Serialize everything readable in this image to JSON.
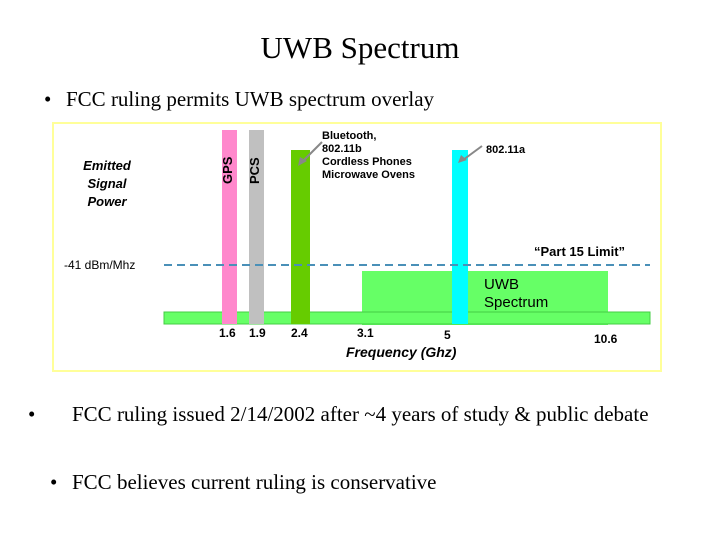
{
  "slide": {
    "title": "UWB Spectrum",
    "bullets": [
      "FCC ruling permits UWB spectrum overlay",
      "FCC ruling issued 2/14/2002 after  ~4 years of study & public debate",
      "FCC believes current ruling is conservative"
    ],
    "bullet_glyph": "•"
  },
  "diagram": {
    "y_label_line1": "Emitted",
    "y_label_line2": "Signal",
    "y_label_line3": "Power",
    "limit_value": "-41 dBm/Mhz",
    "limit_name": "“Part 15 Limit”",
    "bands": {
      "gps": "GPS",
      "pcs": "PCS",
      "ism_line1": "Bluetooth,",
      "ism_line2": "802.11b",
      "ism_line3": "Cordless Phones",
      "ism_line4": "Microwave Ovens",
      "unii": "802.11a",
      "uwb_line1": "UWB",
      "uwb_line2": "Spectrum"
    },
    "x_ticks": [
      "1.6",
      "1.9",
      "2.4",
      "3.1",
      "5",
      "10.6"
    ],
    "x_label": "Frequency (Ghz)",
    "colors": {
      "gps": "#ff88cc",
      "pcs": "#c0c0c0",
      "ism": "#66cc00",
      "unii": "#00ffff",
      "uwb": "#66ff66",
      "baseline": "#66ff66",
      "limit": "#4a90b8",
      "frame": "#ffff99"
    }
  }
}
